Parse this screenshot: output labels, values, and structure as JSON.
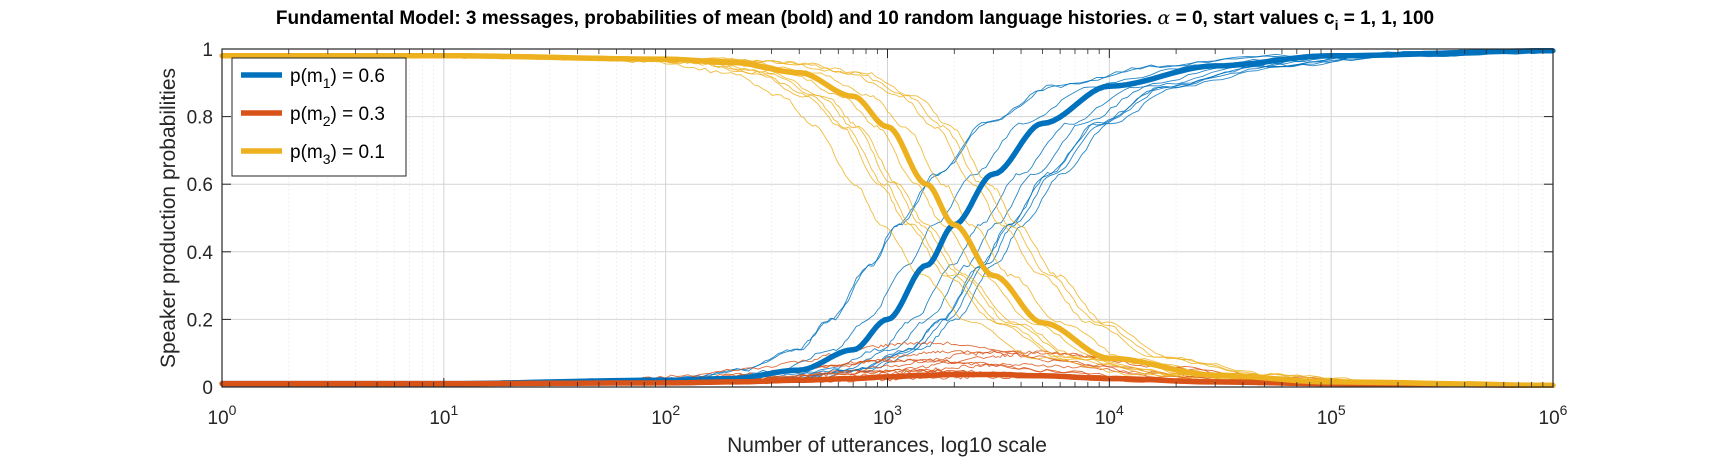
{
  "chart_data": {
    "type": "line",
    "title_parts": [
      "Fundamental Model:  3 messages, probabilities of mean (bold) and 10 random language histories.  ",
      "α",
      " = 0, start values c",
      "i",
      " = 1, 1, 100"
    ],
    "xlabel": "Number of utterances, log10 scale",
    "ylabel": "Speaker production probabilities",
    "xscale": "log",
    "xlim": [
      1,
      1000000
    ],
    "ylim": [
      0,
      1
    ],
    "grid": true,
    "legend_position": "top-left",
    "xtick_labels": [
      {
        "base": "10",
        "exp": "0"
      },
      {
        "base": "10",
        "exp": "1"
      },
      {
        "base": "10",
        "exp": "2"
      },
      {
        "base": "10",
        "exp": "3"
      },
      {
        "base": "10",
        "exp": "4"
      },
      {
        "base": "10",
        "exp": "5"
      },
      {
        "base": "10",
        "exp": "6"
      }
    ],
    "ytick_labels": [
      "0",
      "0.2",
      "0.4",
      "0.6",
      "0.8",
      "1"
    ],
    "yticks": [
      0,
      0.2,
      0.4,
      0.6,
      0.8,
      1
    ],
    "x": [
      1,
      10,
      100,
      200,
      400,
      700,
      1000,
      1500,
      2000,
      3000,
      5000,
      10000,
      30000,
      100000,
      1000000
    ],
    "series": [
      {
        "name": "m1",
        "legend": {
          "prefix": "p(m",
          "sub": "1",
          "suffix": ") = 0.6"
        },
        "color": "#0072BD",
        "values": [
          0.01,
          0.01,
          0.02,
          0.025,
          0.05,
          0.11,
          0.2,
          0.36,
          0.48,
          0.63,
          0.78,
          0.89,
          0.95,
          0.98,
          0.995
        ]
      },
      {
        "name": "m2",
        "legend": {
          "prefix": "p(m",
          "sub": "2",
          "suffix": ") = 0.3"
        },
        "color": "#D95319",
        "values": [
          0.01,
          0.01,
          0.012,
          0.015,
          0.02,
          0.025,
          0.03,
          0.035,
          0.037,
          0.037,
          0.033,
          0.025,
          0.015,
          0.01,
          0.005
        ]
      },
      {
        "name": "m3",
        "legend": {
          "prefix": "p(m",
          "sub": "3",
          "suffix": ") = 0.1"
        },
        "color": "#EDB120",
        "values": [
          0.98,
          0.98,
          0.97,
          0.96,
          0.93,
          0.86,
          0.77,
          0.6,
          0.48,
          0.33,
          0.19,
          0.085,
          0.035,
          0.015,
          0.005
        ]
      }
    ],
    "random_histories_per_series": 10
  }
}
